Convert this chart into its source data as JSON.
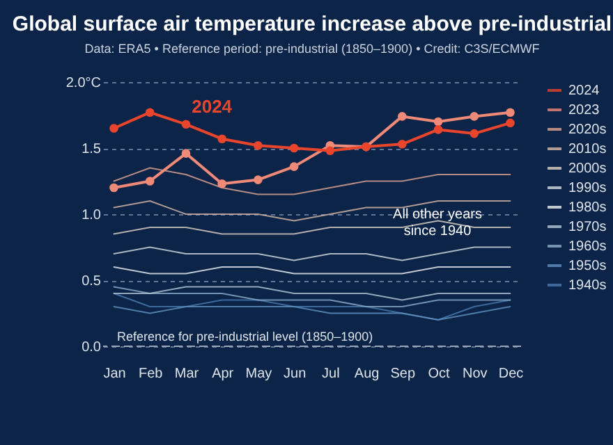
{
  "chart_data": {
    "type": "line",
    "title": "Global surface air temperature increase above pre-industrial",
    "subtitle": "Data: ERA5 • Reference period: pre-industrial (1850–1900) • Credit: C3S/ECMWF",
    "categories": [
      "Jan",
      "Feb",
      "Mar",
      "Apr",
      "May",
      "Jun",
      "Jul",
      "Aug",
      "Sep",
      "Oct",
      "Nov",
      "Dec"
    ],
    "series": [
      {
        "name": "2024",
        "color": "#e8452c",
        "values": [
          1.65,
          1.77,
          1.68,
          1.57,
          1.52,
          1.5,
          1.48,
          1.51,
          1.53,
          1.64,
          1.61,
          1.69
        ]
      },
      {
        "name": "2023",
        "color": "#f08a78",
        "values": [
          1.2,
          1.25,
          1.46,
          1.23,
          1.26,
          1.36,
          1.52,
          1.51,
          1.74,
          1.7,
          1.74,
          1.77
        ]
      },
      {
        "name": "2020s",
        "color": "#e0a594",
        "marker": "none",
        "values": [
          1.25,
          1.35,
          1.3,
          1.2,
          1.15,
          1.15,
          1.2,
          1.25,
          1.25,
          1.3,
          1.3,
          1.3
        ]
      },
      {
        "name": "2010s",
        "color": "#d8b8a8",
        "marker": "none",
        "values": [
          1.05,
          1.1,
          1.0,
          1.0,
          1.0,
          0.95,
          1.0,
          1.05,
          1.05,
          1.1,
          1.1,
          1.1
        ]
      },
      {
        "name": "2000s",
        "color": "#e0d2c6",
        "marker": "none",
        "values": [
          0.85,
          0.9,
          0.9,
          0.85,
          0.85,
          0.85,
          0.9,
          0.9,
          0.9,
          0.95,
          0.9,
          0.9
        ]
      },
      {
        "name": "1990s",
        "color": "#d6dce4",
        "marker": "none",
        "values": [
          0.7,
          0.75,
          0.7,
          0.7,
          0.7,
          0.65,
          0.7,
          0.7,
          0.65,
          0.7,
          0.75,
          0.75
        ]
      },
      {
        "name": "1980s",
        "color": "#eef1f4",
        "marker": "none",
        "values": [
          0.6,
          0.55,
          0.55,
          0.6,
          0.6,
          0.55,
          0.55,
          0.55,
          0.55,
          0.6,
          0.6,
          0.6
        ]
      },
      {
        "name": "1970s",
        "color": "#b6c7d8",
        "marker": "none",
        "values": [
          0.4,
          0.4,
          0.45,
          0.45,
          0.45,
          0.4,
          0.4,
          0.4,
          0.35,
          0.4,
          0.4,
          0.4
        ]
      },
      {
        "name": "1960s",
        "color": "#8eafcc",
        "marker": "none",
        "values": [
          0.45,
          0.4,
          0.4,
          0.4,
          0.35,
          0.35,
          0.35,
          0.3,
          0.3,
          0.35,
          0.35,
          0.35
        ]
      },
      {
        "name": "1950s",
        "color": "#6192c2",
        "marker": "none",
        "values": [
          0.3,
          0.25,
          0.3,
          0.3,
          0.3,
          0.3,
          0.25,
          0.25,
          0.25,
          0.2,
          0.25,
          0.3
        ]
      },
      {
        "name": "1940s",
        "color": "#4a7ab0",
        "marker": "none",
        "values": [
          0.4,
          0.3,
          0.3,
          0.35,
          0.35,
          0.3,
          0.3,
          0.3,
          0.25,
          0.2,
          0.3,
          0.35
        ]
      }
    ],
    "ylim": [
      0,
      2.0
    ],
    "yticks": [
      {
        "value": 0,
        "label": "0.0"
      },
      {
        "value": 0.5,
        "label": "0.5"
      },
      {
        "value": 1,
        "label": "1.0"
      },
      {
        "value": 1.5,
        "label": "1.5"
      },
      {
        "value": 2,
        "label": "2.0°C"
      }
    ],
    "grid": "y",
    "marker": "circle",
    "line_style": "solid",
    "legend": "right",
    "ref_lines": [
      {
        "axis": "y",
        "value": 0,
        "label": "Reference for pre-industrial level (1850–1900)"
      }
    ],
    "annotations": [
      "All other years since 1940"
    ]
  }
}
